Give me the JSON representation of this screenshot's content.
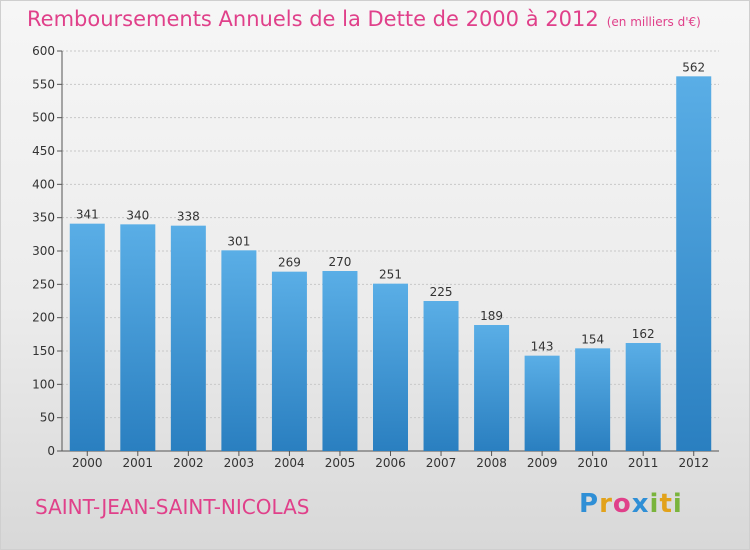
{
  "header": {
    "title": "Remboursements Annuels de la Dette de 2000 à 2012",
    "unit": "(en milliers d'€)"
  },
  "footer": {
    "commune": "SAINT-JEAN-SAINT-NICOLAS",
    "logo_letters": [
      "P",
      "r",
      "o",
      "x",
      "i",
      "t",
      "i"
    ],
    "logo_colors": [
      "#2f8fd6",
      "#e2a21a",
      "#e0408a",
      "#2f8fd6",
      "#7ab43c",
      "#e2a21a",
      "#7ab43c"
    ]
  },
  "chart_data": {
    "type": "bar",
    "categories": [
      "2000",
      "2001",
      "2002",
      "2003",
      "2004",
      "2005",
      "2006",
      "2007",
      "2008",
      "2009",
      "2010",
      "2011",
      "2012"
    ],
    "values": [
      341,
      340,
      338,
      301,
      269,
      270,
      251,
      225,
      189,
      143,
      154,
      162,
      562
    ],
    "ylim": [
      0,
      600
    ],
    "yticks": [
      0,
      50,
      100,
      150,
      200,
      250,
      300,
      350,
      400,
      450,
      500,
      550,
      600
    ],
    "grid": true,
    "bar_color_top": "#5aaee6",
    "bar_color_bottom": "#2a7fc0"
  }
}
